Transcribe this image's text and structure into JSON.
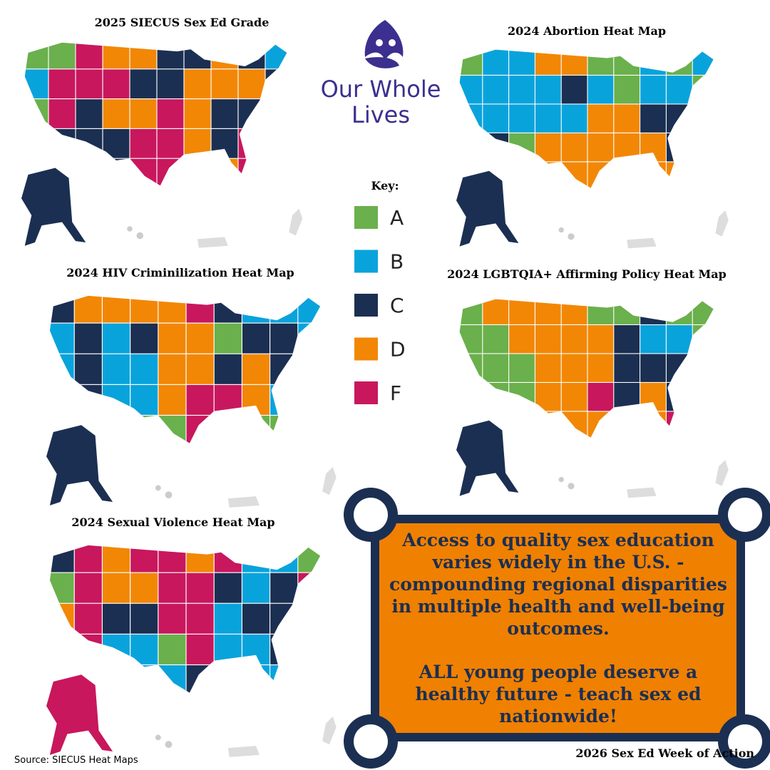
{
  "logo": {
    "line1": "Our Whole",
    "line2": "Lives"
  },
  "maps": [
    {
      "title": "2025 SIECUS Sex Ed Grade"
    },
    {
      "title": "2024 Abortion Heat Map"
    },
    {
      "title": "2024 HIV Criminilization Heat Map"
    },
    {
      "title": "2024 LGBTQIA+ Affirming Policy Heat Map"
    },
    {
      "title": "2024 Sexual Violence Heat Map"
    }
  ],
  "key": {
    "title": "Key:",
    "items": [
      {
        "label": "A",
        "color": "#6ab04c"
      },
      {
        "label": "B",
        "color": "#09a3dc"
      },
      {
        "label": "C",
        "color": "#1b2f52"
      },
      {
        "label": "D",
        "color": "#f28705"
      },
      {
        "label": "F",
        "color": "#c8175d"
      }
    ]
  },
  "callout": {
    "paragraphs": [
      "Access to quality sex education varies widely in the U.S. - compounding regional disparities in multiple health and well-being outcomes.",
      "ALL young people deserve a healthy future - teach sex ed nationwide!"
    ]
  },
  "source": "Source: SIECUS Heat Maps",
  "footer": "2026 Sex Ed Week of Action"
}
